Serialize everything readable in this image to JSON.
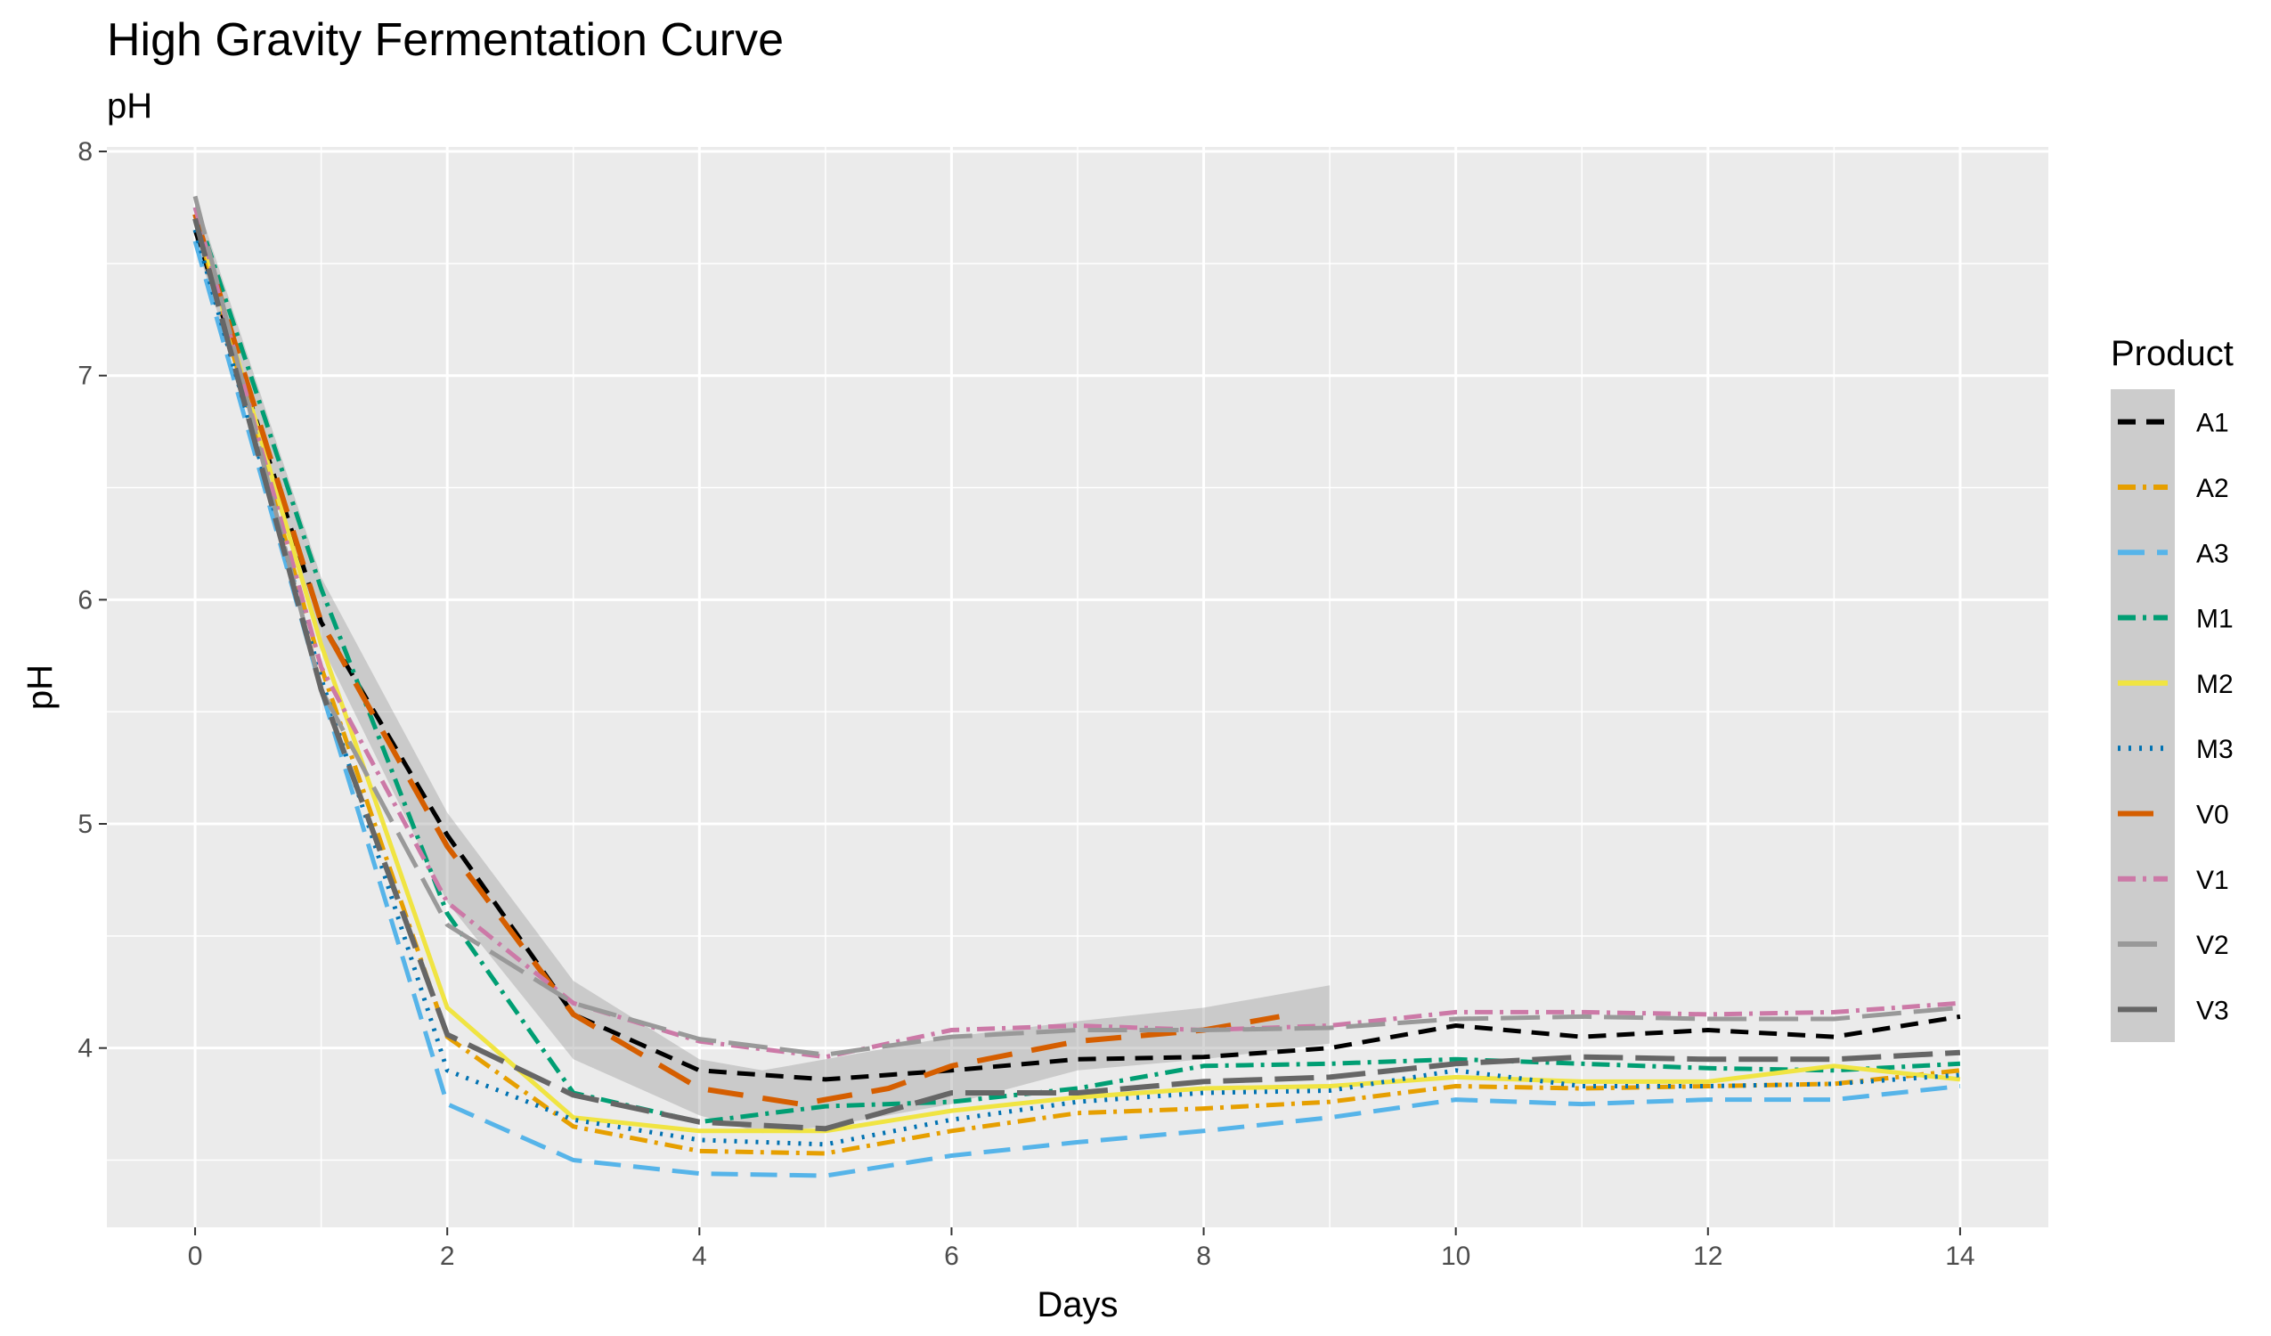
{
  "chart_data": {
    "type": "line",
    "title": "High Gravity Fermentation Curve",
    "subtitle": "pH",
    "xlabel": "Days",
    "ylabel": "pH",
    "xlim": [
      -0.7,
      14.7
    ],
    "ylim": [
      3.2,
      8.02
    ],
    "x_ticks": [
      0,
      2,
      4,
      6,
      8,
      10,
      12,
      14
    ],
    "y_ticks": [
      4,
      5,
      6,
      7,
      8
    ],
    "grid": true,
    "legend": {
      "title": "Product",
      "position": "right"
    },
    "colors": {
      "panel": "#ebebeb",
      "grid": "#ffffff",
      "ribbon": "#999999"
    },
    "ribbon": {
      "x": [
        0,
        1,
        2,
        3,
        4,
        4.5,
        5,
        6,
        7,
        8,
        9
      ],
      "lower": [
        7.6,
        5.8,
        4.65,
        3.95,
        3.7,
        3.62,
        3.65,
        3.75,
        3.9,
        3.95,
        4.02
      ],
      "upper": [
        7.8,
        6.1,
        5.05,
        4.3,
        3.95,
        3.9,
        3.95,
        4.05,
        4.12,
        4.18,
        4.28
      ]
    },
    "series": [
      {
        "name": "A1",
        "color": "#000000",
        "dash": "20,12",
        "width": 5,
        "x": [
          0,
          1,
          2,
          3,
          4,
          5,
          6,
          7,
          8,
          9,
          10,
          11,
          12,
          13,
          14
        ],
        "y": [
          7.65,
          5.9,
          4.95,
          4.15,
          3.9,
          3.86,
          3.9,
          3.95,
          3.96,
          4.0,
          4.1,
          4.05,
          4.08,
          4.05,
          4.14
        ]
      },
      {
        "name": "A2",
        "color": "#E69F00",
        "dash": "20,8,4,8",
        "width": 5,
        "x": [
          0,
          1,
          2,
          3,
          4,
          5,
          6,
          7,
          8,
          9,
          10,
          11,
          12,
          13,
          14
        ],
        "y": [
          7.7,
          5.7,
          4.05,
          3.65,
          3.54,
          3.53,
          3.63,
          3.71,
          3.73,
          3.76,
          3.83,
          3.82,
          3.83,
          3.84,
          3.9
        ]
      },
      {
        "name": "A3",
        "color": "#56B4E9",
        "dash": "30,14",
        "width": 5,
        "x": [
          0,
          1,
          2,
          3,
          4,
          5,
          6,
          7,
          8,
          9,
          10,
          11,
          12,
          13,
          14
        ],
        "y": [
          7.6,
          5.6,
          3.75,
          3.5,
          3.44,
          3.43,
          3.52,
          3.58,
          3.63,
          3.69,
          3.77,
          3.75,
          3.77,
          3.77,
          3.83
        ]
      },
      {
        "name": "M1",
        "color": "#009E73",
        "dash": "20,8,4,8",
        "width": 5,
        "x": [
          0,
          1,
          2,
          3,
          4,
          5,
          6,
          7,
          8,
          9,
          10,
          11,
          12,
          13,
          14
        ],
        "y": [
          7.75,
          6.05,
          4.6,
          3.8,
          3.67,
          3.74,
          3.76,
          3.82,
          3.92,
          3.93,
          3.95,
          3.93,
          3.91,
          3.9,
          3.93
        ]
      },
      {
        "name": "M2",
        "color": "#F0E442",
        "dash": "",
        "width": 5,
        "x": [
          0,
          1,
          2,
          3,
          4,
          5,
          6,
          7,
          8,
          9,
          10,
          11,
          12,
          13,
          14
        ],
        "y": [
          7.72,
          5.8,
          4.18,
          3.69,
          3.63,
          3.63,
          3.72,
          3.78,
          3.82,
          3.83,
          3.87,
          3.85,
          3.85,
          3.92,
          3.86
        ]
      },
      {
        "name": "M3",
        "color": "#0072B2",
        "dash": "3,9",
        "width": 5,
        "x": [
          0,
          1,
          2,
          3,
          4,
          5,
          6,
          7,
          8,
          9,
          10,
          11,
          12,
          13,
          14
        ],
        "y": [
          7.65,
          5.65,
          3.9,
          3.68,
          3.59,
          3.57,
          3.68,
          3.76,
          3.8,
          3.81,
          3.9,
          3.83,
          3.83,
          3.84,
          3.88
        ]
      },
      {
        "name": "V0",
        "color": "#D55E00",
        "dash": "40,22",
        "width": 6,
        "x": [
          0,
          1,
          2,
          3,
          4,
          4.8,
          5.5,
          6,
          7,
          8,
          8.6
        ],
        "y": [
          7.72,
          5.9,
          4.9,
          4.15,
          3.82,
          3.75,
          3.82,
          3.92,
          4.03,
          4.08,
          4.14
        ]
      },
      {
        "name": "V1",
        "color": "#CC79A7",
        "dash": "20,8,4,8",
        "width": 5,
        "x": [
          0,
          1,
          2,
          3,
          4,
          5,
          6,
          7,
          8,
          9,
          10,
          11,
          12,
          13,
          14
        ],
        "y": [
          7.75,
          5.7,
          4.65,
          4.2,
          4.03,
          3.96,
          4.08,
          4.1,
          4.08,
          4.1,
          4.16,
          4.16,
          4.15,
          4.16,
          4.2
        ]
      },
      {
        "name": "V2",
        "color": "#999999",
        "dash": "44,14",
        "width": 5,
        "x": [
          0,
          1,
          2,
          3,
          4,
          5,
          6,
          7,
          8,
          9,
          10,
          11,
          12,
          13,
          14
        ],
        "y": [
          7.8,
          5.6,
          4.55,
          4.2,
          4.04,
          3.97,
          4.05,
          4.08,
          4.08,
          4.09,
          4.13,
          4.14,
          4.13,
          4.13,
          4.18
        ]
      },
      {
        "name": "V3",
        "color": "#666666",
        "dash": "44,14",
        "width": 6,
        "x": [
          0,
          1,
          2,
          3,
          4,
          5,
          6,
          7,
          8,
          9,
          10,
          11,
          12,
          13,
          14
        ],
        "y": [
          7.7,
          5.6,
          4.06,
          3.79,
          3.67,
          3.64,
          3.8,
          3.8,
          3.85,
          3.87,
          3.93,
          3.96,
          3.95,
          3.95,
          3.98
        ]
      }
    ]
  }
}
